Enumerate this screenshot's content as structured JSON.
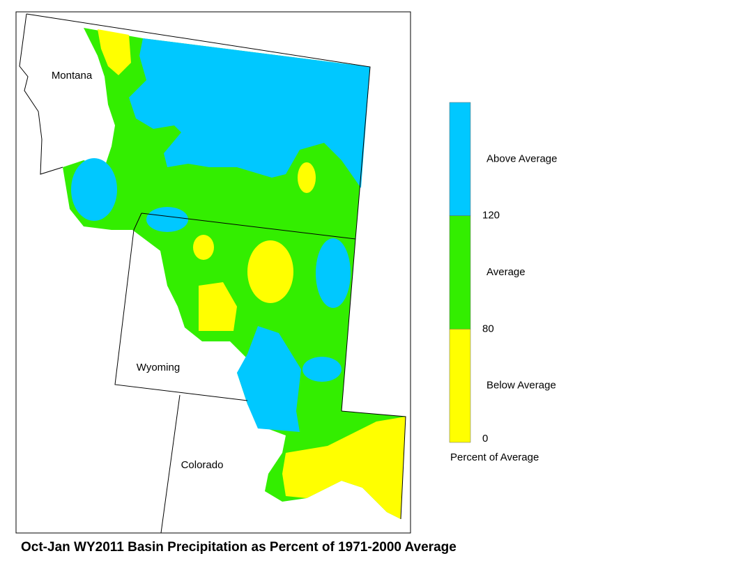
{
  "title": "Oct-Jan WY2011 Basin Precipitation as Percent of 1971-2000 Average",
  "map_labels": [
    "Montana",
    "Wyoming",
    "Colorado"
  ],
  "legend": {
    "title": "Percent of Average",
    "classes": [
      {
        "label": "Above Average",
        "color": "#00c8ff"
      },
      {
        "label": "Average",
        "color": "#33ee00"
      },
      {
        "label": "Below Average",
        "color": "#ffff00"
      }
    ],
    "ticks": [
      120,
      80,
      0
    ]
  }
}
